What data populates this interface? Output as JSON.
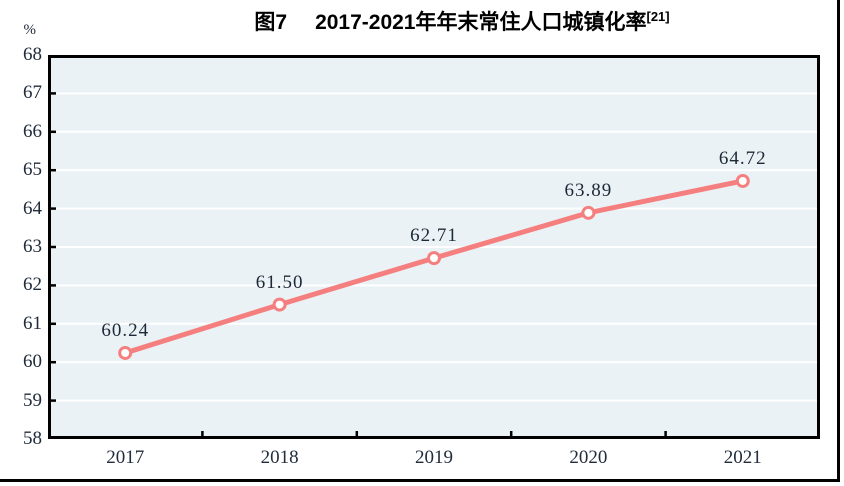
{
  "figure": {
    "title_prefix": "图7",
    "title_main": "2017-2021年年末常住人口城镇化率",
    "title_superscript": "[21]",
    "unit_label": "%"
  },
  "chart_data": {
    "type": "line",
    "title": "图7 2017-2021年年末常住人口城镇化率[21]",
    "unit": "%",
    "categories": [
      "2017",
      "2018",
      "2019",
      "2020",
      "2021"
    ],
    "series": [
      {
        "name": "年末常住人口城镇化率",
        "values": [
          60.24,
          61.5,
          62.71,
          63.89,
          64.72
        ]
      }
    ],
    "data_labels": [
      "60.24",
      "61.50",
      "62.71",
      "63.89",
      "64.72"
    ],
    "ylim": [
      58,
      68
    ],
    "ytick_interval": 1,
    "grid": "horizontal-white",
    "legend": "none",
    "colors": {
      "line": "#F57F7F",
      "marker_fill": "#FFFFFF",
      "marker_stroke": "#F57F7F",
      "plot_background": "#EAF2F6",
      "gridline": "#FFFFFF",
      "axis_border": "#000000",
      "label_text": "#1C2936"
    }
  }
}
